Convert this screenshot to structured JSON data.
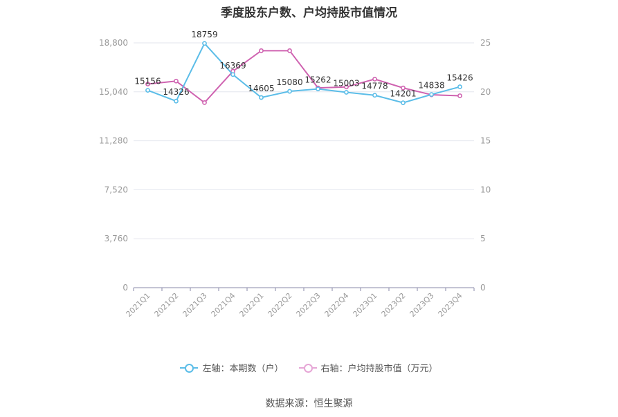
{
  "colors": {
    "left_series": "#5bbde8",
    "right_series": "#cf62b0",
    "grid": "#e3e6ee",
    "axis": "#8888aa",
    "text": "#999999"
  },
  "source": "数据来源：恒生聚源",
  "chart_data": {
    "type": "line",
    "title": "季度股东户数、户均持股市值情况",
    "categories": [
      "2021Q1",
      "2021Q2",
      "2021Q3",
      "2021Q4",
      "2022Q1",
      "2022Q2",
      "2022Q3",
      "2022Q4",
      "2023Q1",
      "2023Q2",
      "2023Q3",
      "2023Q4"
    ],
    "left_axis": {
      "ylim": [
        0,
        18800
      ],
      "ticks": [
        "0",
        "3,760",
        "7,520",
        "11,280",
        "15,040",
        "18,800"
      ],
      "tick_values": [
        0,
        3760,
        7520,
        11280,
        15040,
        18800
      ]
    },
    "right_axis": {
      "ylim": [
        0,
        25
      ],
      "ticks": [
        "0",
        "5",
        "10",
        "15",
        "20",
        "25"
      ],
      "tick_values": [
        0,
        5,
        10,
        15,
        20,
        25
      ]
    },
    "series": [
      {
        "name": "左轴：本期数（户）",
        "axis": "left",
        "show_labels": true,
        "values": [
          15156,
          14326,
          18759,
          16369,
          14605,
          15080,
          15262,
          15003,
          14778,
          14201,
          14838,
          15426
        ],
        "labels": [
          "15156",
          "14326",
          "18759",
          "16369",
          "14605",
          "15080",
          "15262",
          "15003",
          "14778",
          "14201",
          "14838",
          "15426"
        ]
      },
      {
        "name": "右轴：户均持股市值（万元）",
        "axis": "right",
        "show_labels": false,
        "values": [
          20.8,
          21.1,
          18.9,
          22.1,
          24.2,
          24.2,
          20.4,
          20.5,
          21.3,
          20.4,
          19.7,
          19.6
        ]
      }
    ],
    "grid": true,
    "legend_position": "bottom"
  }
}
